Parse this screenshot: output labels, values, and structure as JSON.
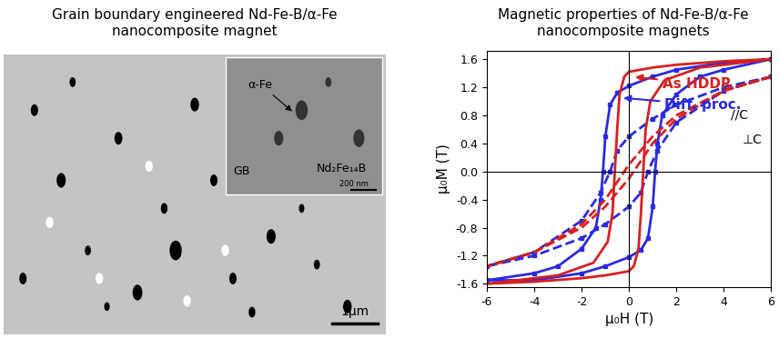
{
  "micrograph": {
    "title": "Grain boundary engineered Nd-Fe-B/α-Fe\nnanocomposite magnet",
    "inset_labels": [
      "α-Fe",
      "GB",
      "Nd₂Fe₁₄B"
    ],
    "inset_scale_bar": "200 nm",
    "scale_bar": "1μm"
  },
  "chart_data": {
    "type": "line",
    "title": "Magnetic properties of Nd-Fe-B/α-Fe\nnanocomposite magnets",
    "x_label": "μ₀H (T)",
    "y_label": "μ₀M (T)",
    "xlim": [
      -6,
      6
    ],
    "xticks": [
      -6,
      -4,
      -2,
      0,
      2,
      4,
      6
    ],
    "ylim": [
      -1.65,
      1.72
    ],
    "yticks": [
      -1.6,
      -1.2,
      -0.8,
      -0.4,
      0.0,
      0.4,
      0.8,
      1.2,
      1.6
    ],
    "grid": false,
    "annotations": [
      {
        "text": "As HDDR",
        "color": "#d62020"
      },
      {
        "text": "Diff. proc.",
        "color": "#2a2ae0"
      },
      {
        "text": "//C",
        "color": "#000000"
      },
      {
        "text": "⊥C",
        "color": "#000000"
      }
    ],
    "series": [
      {
        "color": "#2a2ae0",
        "line_style": "solid",
        "marker": "s",
        "x": [
          6,
          4,
          2,
          1,
          0,
          -0.5,
          -0.8,
          -1.0,
          -1.1,
          -1.2,
          -1.4,
          -2,
          -3,
          -4,
          -6,
          -4,
          -2,
          -1,
          0,
          0.5,
          0.8,
          1.0,
          1.1,
          1.2,
          1.4,
          2,
          3,
          4,
          6
        ],
        "values": [
          1.6,
          1.55,
          1.45,
          1.35,
          1.22,
          1.12,
          0.95,
          0.5,
          0.0,
          -0.4,
          -0.8,
          -1.1,
          -1.35,
          -1.45,
          -1.55,
          -1.55,
          -1.45,
          -1.35,
          -1.22,
          -1.12,
          -0.95,
          -0.5,
          0.0,
          0.4,
          0.8,
          1.1,
          1.35,
          1.45,
          1.6
        ]
      },
      {
        "color": "#2a2ae0",
        "line_style": "dashed",
        "marker": "s",
        "x": [
          6,
          4,
          2,
          1,
          0,
          -0.5,
          -0.8,
          -1.2,
          -2,
          -4,
          -6,
          -4,
          -2,
          -1,
          0,
          0.5,
          0.8,
          1.2,
          2,
          4,
          6
        ],
        "values": [
          1.35,
          1.2,
          0.95,
          0.75,
          0.5,
          0.3,
          0.0,
          -0.3,
          -0.7,
          -1.15,
          -1.35,
          -1.2,
          -0.95,
          -0.75,
          -0.5,
          -0.3,
          0.0,
          0.3,
          0.7,
          1.15,
          1.35
        ]
      },
      {
        "color": "#d62020",
        "line_style": "solid",
        "marker": "none",
        "x": [
          6,
          4,
          2,
          1,
          0,
          -0.2,
          -0.4,
          -0.5,
          -0.6,
          -0.7,
          -0.9,
          -1.5,
          -3,
          -6,
          -4,
          -2,
          -1,
          0,
          0.2,
          0.4,
          0.5,
          0.6,
          0.7,
          0.9,
          1.5,
          3,
          6
        ],
        "values": [
          1.6,
          1.57,
          1.52,
          1.48,
          1.42,
          1.35,
          1.1,
          0.6,
          0.0,
          -0.6,
          -1.0,
          -1.3,
          -1.48,
          -1.6,
          -1.57,
          -1.52,
          -1.48,
          -1.42,
          -1.35,
          -1.1,
          -0.6,
          0.0,
          0.6,
          1.0,
          1.3,
          1.48,
          1.6
        ]
      },
      {
        "color": "#d62020",
        "line_style": "dashed",
        "marker": "none",
        "x": [
          6,
          4,
          2,
          1,
          0.5,
          0,
          -0.5,
          -1,
          -2,
          -4,
          -6,
          -4,
          -2,
          -1,
          -0.5,
          0,
          0.5,
          1,
          2,
          4,
          6
        ],
        "values": [
          1.35,
          1.15,
          0.8,
          0.5,
          0.3,
          0.1,
          -0.15,
          -0.4,
          -0.75,
          -1.15,
          -1.35,
          -1.15,
          -0.8,
          -0.5,
          -0.3,
          -0.1,
          0.15,
          0.4,
          0.75,
          1.15,
          1.35
        ]
      }
    ]
  }
}
